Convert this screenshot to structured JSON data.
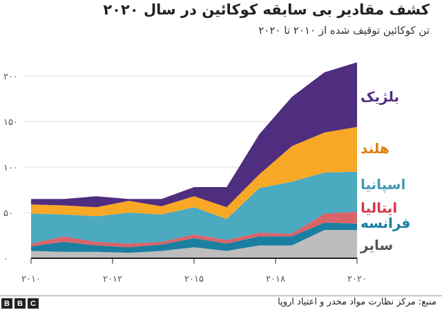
{
  "title": "کشف مقادیر بی سابقه کوکائین در سال ۲۰۲۰",
  "subtitle": "تن کوکائین توقیف شده از ۲۰۱۰ تا ۲۰۲۰",
  "source": "منبع: مرکز نظارت مواد مخدر و اعتیاد اروپا",
  "logo": [
    "B",
    "B",
    "C"
  ],
  "chart_data": {
    "type": "area",
    "stacked": true,
    "title": "کشف مقادیر بی سابقه کوکائین در سال ۲۰۲۰",
    "subtitle": "تن کوکائین توقیف شده از ۲۰۱۰ تا ۲۰۲۰",
    "x": [
      2010,
      2011,
      2012,
      2013,
      2014,
      2015,
      2016,
      2017,
      2018,
      2019,
      2020
    ],
    "xlim": [
      2010,
      2020
    ],
    "ylim": [
      0,
      200
    ],
    "grid": true,
    "x_ticks": [
      {
        "value": 2010,
        "label": "۲۰۱۰"
      },
      {
        "value": 2012.5,
        "label": "۲۰۱۲"
      },
      {
        "value": 2015,
        "label": "۲۰۱۵"
      },
      {
        "value": 2017.5,
        "label": "۲۰۱۸"
      },
      {
        "value": 2020,
        "label": "۲۰۲۰"
      }
    ],
    "y_ticks": [
      {
        "value": 0,
        "label": "۰"
      },
      {
        "value": 50,
        "label": "۵۰"
      },
      {
        "value": 100,
        "label": "۱۰۰"
      },
      {
        "value": 150,
        "label": "۱۵۰"
      },
      {
        "value": 200,
        "label": "۲۰۰"
      }
    ],
    "legend_placement": "right-inline",
    "series": [
      {
        "name": "سایر",
        "color": "#bdbdbd",
        "label_color": "#555555",
        "values": [
          8,
          7,
          7,
          6,
          8,
          12,
          8,
          14,
          14,
          31,
          31
        ]
      },
      {
        "name": "فرانسه",
        "color": "#1a7fa0",
        "label_color": "#1780a1",
        "values": [
          5,
          11,
          7,
          6,
          7,
          10,
          8,
          10,
          10,
          8,
          7
        ]
      },
      {
        "name": "ایتالیا",
        "color": "#d96469",
        "label_color": "#d9374b",
        "values": [
          3,
          6,
          4,
          4,
          3,
          4,
          4,
          4,
          3,
          10,
          13
        ]
      },
      {
        "name": "اسپانیا",
        "color": "#4ba9c0",
        "label_color": "#3d9bb3",
        "values": [
          33,
          24,
          28,
          34,
          30,
          30,
          23,
          49,
          57,
          45,
          44
        ]
      },
      {
        "name": "هلند",
        "color": "#f9a825",
        "label_color": "#e07f0b",
        "values": [
          10,
          10,
          10,
          13,
          9,
          12,
          13,
          15,
          39,
          44,
          49
        ]
      },
      {
        "name": "بلژیک",
        "color": "#4f2d7f",
        "label_color": "#4f2d7f",
        "values": [
          6,
          7,
          12,
          2,
          8,
          10,
          22,
          44,
          54,
          66,
          71
        ]
      }
    ]
  }
}
